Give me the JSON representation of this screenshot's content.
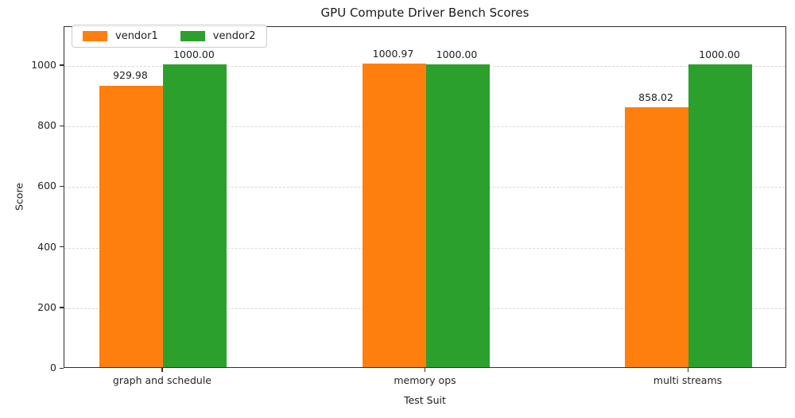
{
  "chart_data": {
    "type": "bar",
    "title": "GPU Compute Driver Bench Scores",
    "xlabel": "Test Suit",
    "ylabel": "Score",
    "categories": [
      "graph and schedule",
      "memory ops",
      "multi streams"
    ],
    "series": [
      {
        "name": "vendor1",
        "color": "#ff7f0e",
        "values": [
          929.98,
          1000.97,
          858.02
        ]
      },
      {
        "name": "vendor2",
        "color": "#2ca02c",
        "values": [
          1000.0,
          1000.0,
          1000.0
        ]
      }
    ],
    "value_label_format": "2-decimals",
    "y_ticks": [
      0,
      200,
      400,
      600,
      800,
      1000
    ],
    "ylim": [
      0,
      1128
    ],
    "grid": "horizontal-dashed",
    "legend_position": "upper-left",
    "frame": "full-box",
    "colors": {
      "grid": "#d8d8d8",
      "spine": "#2e2e2e",
      "text": "#1f1f1f",
      "background": "#ffffff"
    }
  }
}
